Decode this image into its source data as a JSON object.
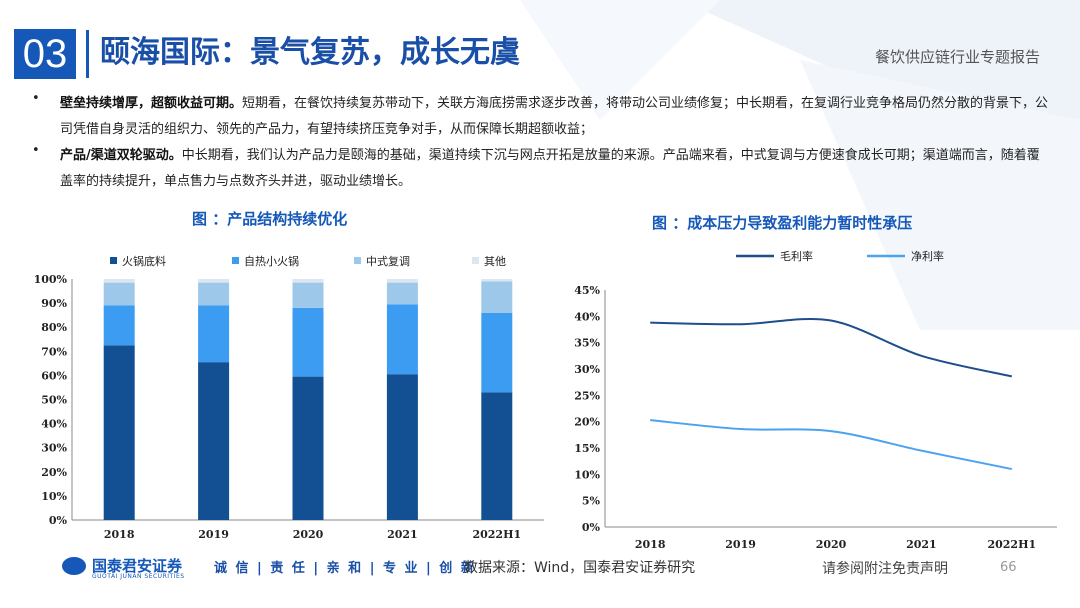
{
  "header": {
    "section_number": "03",
    "title": "颐海国际：景气复苏，成长无虞",
    "report_name": "餐饮供应链行业专题报告"
  },
  "bullets": [
    {
      "bold": "壁垒持续增厚，超额收益可期。",
      "text": "短期看，在餐饮持续复苏带动下，关联方海底捞需求逐步改善，将带动公司业绩修复；中长期看，在复调行业竞争格局仍然分散的背景下，公司凭借自身灵活的组织力、领先的产品力，有望持续挤压竞争对手，从而保障长期超额收益；"
    },
    {
      "bold": "产品/渠道双轮驱动。",
      "text": "中长期看，我们认为产品力是颐海的基础，渠道持续下沉与网点开拓是放量的来源。产品端来看，中式复调与方便速食成长可期；渠道端而言，随着覆盖率的持续提升，单点售力与点数齐头并进，驱动业绩增长。"
    }
  ],
  "chart_data": [
    {
      "type": "bar",
      "stacked": true,
      "title": "图 ：产品结构持续优化",
      "categories": [
        "2018",
        "2019",
        "2020",
        "2021",
        "2022H1"
      ],
      "series": [
        {
          "name": "火锅底料",
          "color": "#124f93",
          "values": [
            72.5,
            65.5,
            59.5,
            60.5,
            53
          ]
        },
        {
          "name": "自热小火锅",
          "color": "#3b9cf2",
          "values": [
            16.5,
            23.5,
            28.5,
            29,
            33
          ]
        },
        {
          "name": "中式复调",
          "color": "#9dc8ea",
          "values": [
            9.5,
            9.5,
            10.5,
            9,
            13
          ]
        },
        {
          "name": "其他",
          "color": "#dce6f0",
          "values": [
            1.5,
            1.5,
            1.5,
            1.5,
            1
          ]
        }
      ],
      "y_ticks": [
        "0%",
        "10%",
        "20%",
        "30%",
        "40%",
        "50%",
        "60%",
        "70%",
        "80%",
        "90%",
        "100%"
      ],
      "ylim": [
        0,
        100
      ],
      "grid": false,
      "legend": "top"
    },
    {
      "type": "line",
      "title": "图 ：成本压力导致盈利能力暂时性承压",
      "categories": [
        "2018",
        "2019",
        "2020",
        "2021",
        "2022H1"
      ],
      "series": [
        {
          "name": "毛利率",
          "color": "#1f4e8c",
          "values": [
            38.8,
            38.5,
            39.2,
            32.5,
            28.6
          ]
        },
        {
          "name": "净利率",
          "color": "#4ba3f0",
          "values": [
            20.3,
            18.6,
            18.2,
            14.5,
            11
          ]
        }
      ],
      "y_ticks": [
        "0%",
        "5%",
        "10%",
        "15%",
        "20%",
        "25%",
        "30%",
        "35%",
        "40%",
        "45%"
      ],
      "ylim": [
        0,
        45
      ],
      "grid": false,
      "legend": "top"
    }
  ],
  "footer": {
    "company": "国泰君安证券",
    "company_en": "GUOTAI JUNAN SECURITIES",
    "motto": "诚 信 | 责 任 | 亲 和 | 专 业 | 创 新",
    "source": "数据来源：Wind，国泰君安证券研究",
    "disclaimer": "请参阅附注免责声明",
    "page": "66"
  }
}
